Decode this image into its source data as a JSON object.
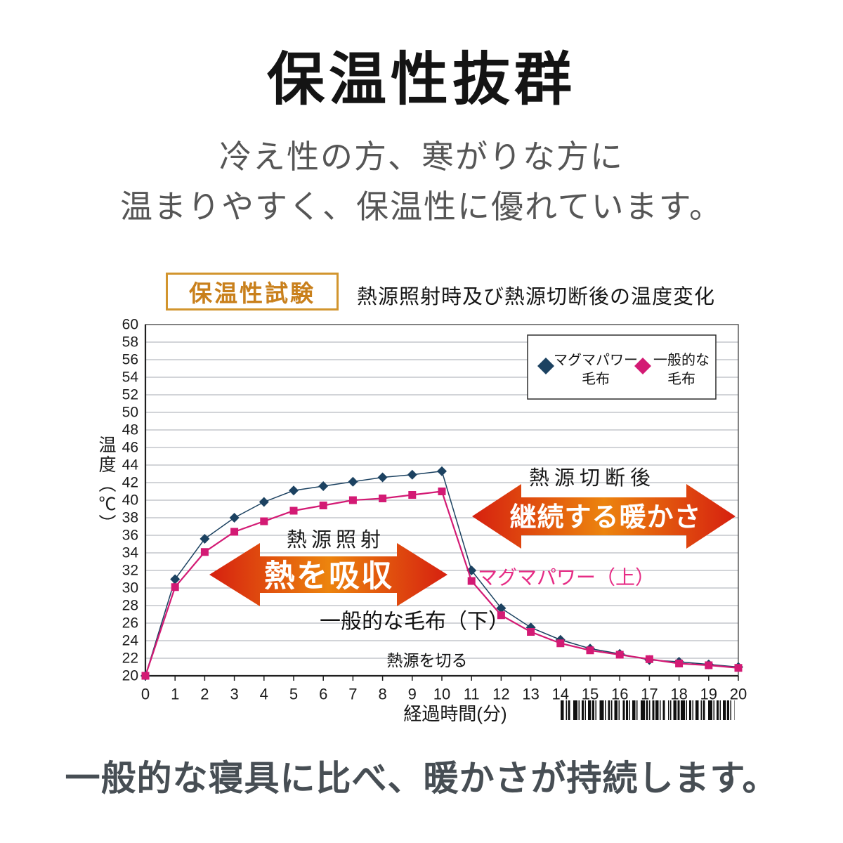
{
  "page": {
    "title": "保温性抜群",
    "subtitle_line1": "冷え性の方、寒がりな方に",
    "subtitle_line2": "温まりやすく、保温性に優れています。",
    "bottom_caption": "一般的な寝具に比べ、暖かさが持続します。"
  },
  "chart_header": {
    "badge": "保温性試験",
    "title": "熱源照射時及び熱源切断後の温度変化"
  },
  "chart_data": {
    "type": "line",
    "title": "熱源照射時及び熱源切断後の温度変化",
    "xlabel": "経過時間(分)",
    "ylabel": "温度（℃）",
    "xlim": [
      0,
      20
    ],
    "ylim": [
      20,
      60
    ],
    "xtick_step": 1,
    "ytick_step": 2,
    "grid": true,
    "legend_position": "top-right",
    "x": [
      0,
      1,
      2,
      3,
      4,
      5,
      6,
      7,
      8,
      9,
      10,
      11,
      12,
      13,
      14,
      15,
      16,
      17,
      18,
      19,
      20
    ],
    "series": [
      {
        "name": "マグマパワー毛布",
        "legend_line1": "マグマパワー",
        "legend_line2": "毛布",
        "marker": "diamond",
        "color": "#1c4261",
        "values": [
          20,
          31.0,
          35.6,
          38.0,
          39.8,
          41.1,
          41.6,
          42.1,
          42.6,
          42.9,
          43.3,
          32.0,
          27.7,
          25.5,
          24.1,
          23.1,
          22.5,
          21.8,
          21.6,
          21.3,
          21.0
        ]
      },
      {
        "name": "一般的な毛布",
        "legend_line1": "一般的な",
        "legend_line2": "毛布",
        "marker": "square",
        "color": "#d31a74",
        "values": [
          20,
          30.1,
          34.1,
          36.4,
          37.6,
          38.8,
          39.4,
          40.0,
          40.2,
          40.6,
          41.0,
          30.8,
          26.9,
          25.0,
          23.7,
          22.9,
          22.4,
          21.9,
          21.4,
          21.2,
          20.9
        ]
      }
    ],
    "annotations": {
      "phase1_label": "熱源照射",
      "phase1_arrow_text": "熱を吸収",
      "phase2_label": "熱源切断後",
      "phase2_arrow_text": "継続する暖かさ",
      "series1_callout": "マグマパワー（上）",
      "series2_callout": "一般的な毛布（下）",
      "cutoff_label": "熱源を切る"
    },
    "has_barcode": true,
    "colors": {
      "magma_blue": "#1c4261",
      "general_magenta": "#d31a74",
      "arrow_red": "#d6200f",
      "arrow_orange": "#ec840e",
      "grid": "#a6aab0",
      "axis": "#1f1f1f",
      "plot_border": "#4e4e4e",
      "callout_pink": "#e62c85",
      "badge_orange": "#c9801c",
      "barcode": "#101010"
    }
  }
}
